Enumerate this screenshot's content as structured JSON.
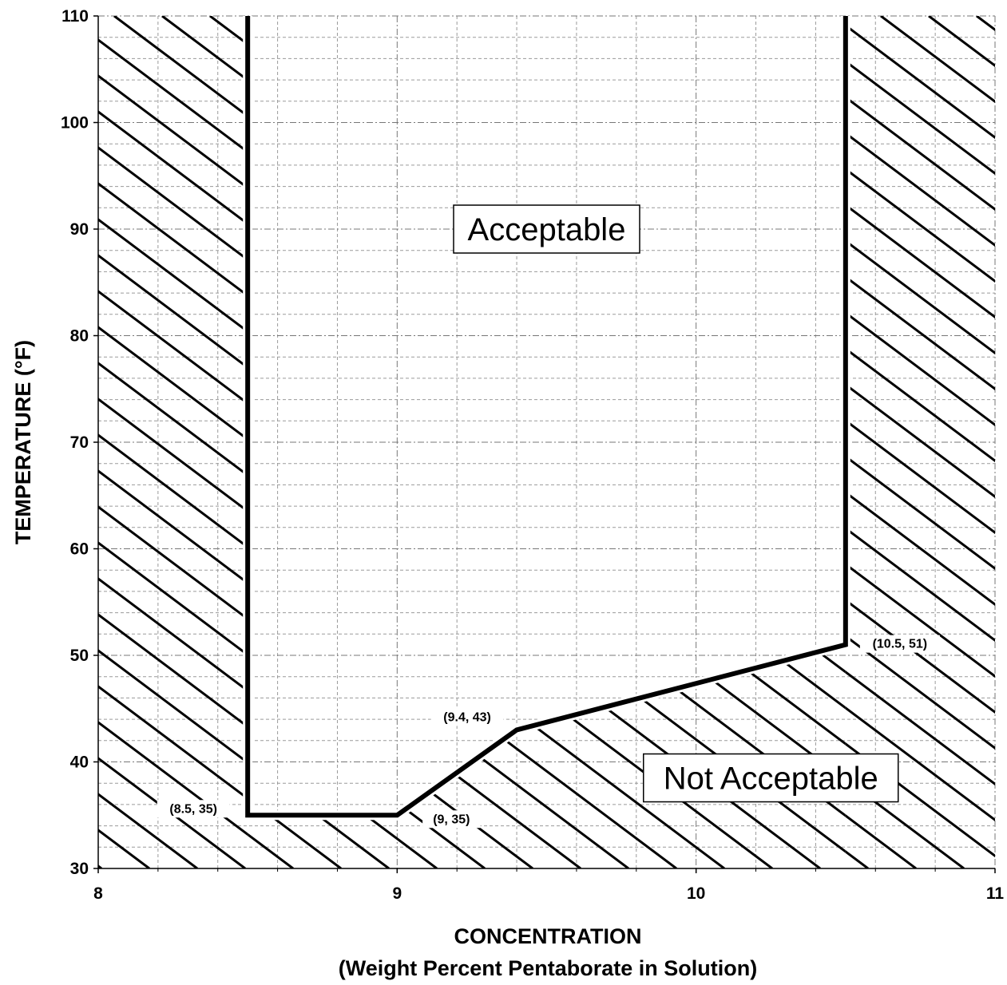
{
  "chart_data": {
    "type": "line",
    "title": "",
    "xlabel": "CONCENTRATION",
    "xlabel_sub": "(Weight Percent Pentaborate in Solution)",
    "ylabel": "TEMPERATURE (°F)",
    "xlim": [
      8,
      11
    ],
    "ylim": [
      30,
      110
    ],
    "x_ticks": [
      8,
      9,
      10,
      11
    ],
    "y_ticks": [
      30,
      40,
      50,
      60,
      70,
      80,
      90,
      100,
      110
    ],
    "grid": true,
    "series": [
      {
        "x": [
          8.5,
          8.5,
          9,
          9.4,
          10.5,
          10.5
        ],
        "y": [
          110,
          35,
          35,
          43,
          51,
          110
        ]
      }
    ],
    "annotations": [
      {
        "text": "(8.5, 35)",
        "x": 8.5,
        "y": 35
      },
      {
        "text": "(9, 35)",
        "x": 9,
        "y": 35
      },
      {
        "text": "(9.4, 43)",
        "x": 9.4,
        "y": 43
      },
      {
        "text": "(10.5, 51)",
        "x": 10.5,
        "y": 51
      }
    ],
    "regions": [
      {
        "text": "Acceptable",
        "x": 9.5,
        "y": 90
      },
      {
        "text": "Not Acceptable",
        "x": 10.25,
        "y": 38.5
      }
    ],
    "colors": {
      "line": "#000000",
      "grid": "#9a9a9a",
      "background": "#ffffff"
    }
  }
}
